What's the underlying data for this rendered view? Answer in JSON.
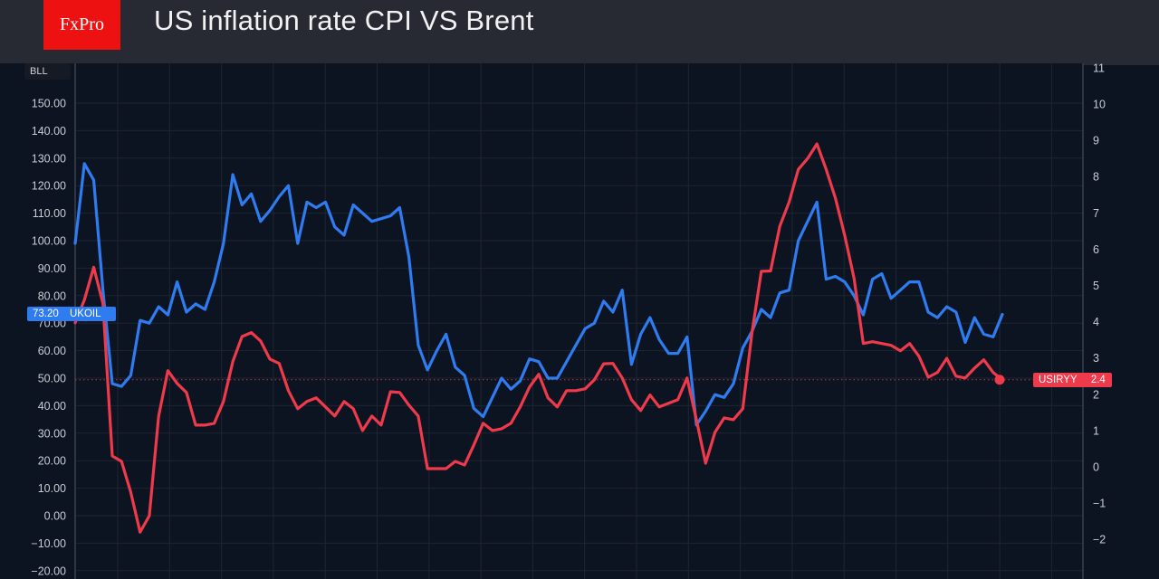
{
  "header": {
    "logo_text": "FxPro",
    "title": "US inflation rate CPI VS Brent",
    "brand_color": "#ee1111"
  },
  "left_axis_badge": "BLL",
  "chart_data": {
    "type": "line",
    "title": "US inflation rate CPI VS Brent",
    "grid": true,
    "left_axis": {
      "ylim": [
        -20,
        150
      ],
      "ticks": [
        150,
        140,
        130,
        120,
        110,
        100,
        90,
        80,
        70,
        60,
        50,
        40,
        30,
        20,
        10,
        0,
        -10,
        -20
      ],
      "tick_labels": [
        "150.00",
        "140.00",
        "130.00",
        "120.00",
        "110.00",
        "100.00",
        "90.00",
        "80.00",
        "70.00",
        "60.00",
        "50.00",
        "40.00",
        "30.00",
        "20.00",
        "10.00",
        "0.00",
        "−10.00",
        "−20.00"
      ]
    },
    "right_axis": {
      "ylim": [
        -2.5,
        11
      ],
      "ticks": [
        11,
        10,
        9,
        8,
        7,
        6,
        5,
        4,
        3,
        2,
        1,
        0,
        -1,
        -2
      ],
      "tick_labels": [
        "11",
        "10",
        "9",
        "8",
        "7",
        "6",
        "5",
        "4",
        "3",
        "2",
        "1",
        "0",
        "−1",
        "−2"
      ]
    },
    "series": [
      {
        "name": "UKOIL",
        "axis": "left",
        "color": "#2f7bf0",
        "last_value_label": "73.20",
        "values": [
          99,
          128,
          122,
          82,
          48,
          47,
          51,
          71,
          70,
          76,
          73,
          85,
          74,
          77,
          75,
          85,
          99,
          124,
          113,
          117,
          107,
          111,
          116,
          120,
          99,
          114,
          112,
          114,
          105,
          102,
          113,
          110,
          107,
          108,
          109,
          112,
          94,
          62,
          53,
          60,
          66,
          54,
          51,
          39,
          36,
          43,
          50,
          46,
          49,
          57,
          56,
          50,
          50,
          56,
          62,
          68,
          70,
          78,
          74,
          82,
          55,
          66,
          72,
          64,
          59,
          59,
          65,
          33,
          38,
          44,
          43,
          48,
          61,
          67,
          75,
          72,
          81,
          82,
          100,
          107,
          114,
          86,
          87,
          85,
          80,
          73,
          86,
          88,
          79,
          82,
          85,
          85,
          74,
          72,
          76,
          74,
          63,
          72,
          66,
          65,
          73.2
        ]
      },
      {
        "name": "USIRYY",
        "axis": "right",
        "color": "#ee3a4b",
        "last_value_label": "2.4",
        "values": [
          3.97,
          4.6,
          5.5,
          4.5,
          0.3,
          0.15,
          -0.7,
          -1.8,
          -1.35,
          1.4,
          2.65,
          2.3,
          2.05,
          1.15,
          1.15,
          1.2,
          1.8,
          2.9,
          3.59,
          3.7,
          3.47,
          2.97,
          2.85,
          2.1,
          1.6,
          1.8,
          1.9,
          1.65,
          1.4,
          1.8,
          1.6,
          1.0,
          1.4,
          1.15,
          2.07,
          2.05,
          1.7,
          1.4,
          -0.05,
          -0.05,
          -0.05,
          0.15,
          0.05,
          0.6,
          1.2,
          1.0,
          1.05,
          1.2,
          1.65,
          2.2,
          2.55,
          1.9,
          1.65,
          2.1,
          2.1,
          2.15,
          2.4,
          2.84,
          2.85,
          2.45,
          1.85,
          1.55,
          1.98,
          1.65,
          1.75,
          1.85,
          2.45,
          1.3,
          0.1,
          0.95,
          1.35,
          1.3,
          1.6,
          3.7,
          5.39,
          5.4,
          6.63,
          7.3,
          8.2,
          8.5,
          8.9,
          8.2,
          7.4,
          6.38,
          5.2,
          3.4,
          3.45,
          3.4,
          3.35,
          3.2,
          3.4,
          3.05,
          2.47,
          2.6,
          2.99,
          2.5,
          2.45,
          2.72,
          2.95,
          2.6,
          2.4
        ]
      }
    ]
  }
}
